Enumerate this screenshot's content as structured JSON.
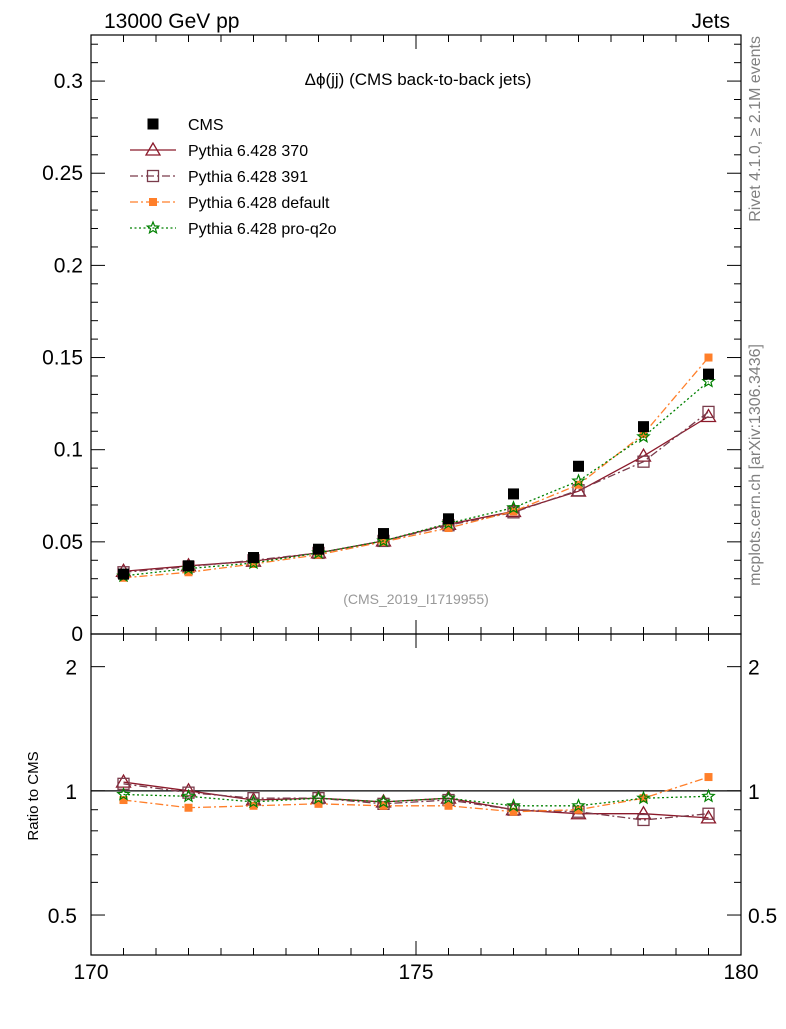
{
  "header": {
    "left": "13000 GeV pp",
    "right": "Jets"
  },
  "side_notes": {
    "rivet": "Rivet 4.1.0, ≥ 2.1M events",
    "mcplots": "mcplots.cern.ch [arXiv:1306.3436]"
  },
  "chart_data": {
    "type": "line",
    "title": "Δϕ(jj) (CMS back-to-back jets)",
    "analysis_label": "(CMS_2019_I1719955)",
    "xlabel": "",
    "xlim": [
      170,
      180
    ],
    "x_ticks": [
      "170",
      "175",
      "180"
    ],
    "x": [
      170.5,
      171.5,
      172.5,
      173.5,
      174.5,
      175.5,
      176.5,
      177.5,
      178.5,
      179.5
    ],
    "main": {
      "ylabel": "",
      "ylim": [
        0,
        0.325
      ],
      "y_ticks": [
        {
          "value": 0,
          "label": "0"
        },
        {
          "value": 0.05,
          "label": "0.05"
        },
        {
          "value": 0.1,
          "label": "0.1"
        },
        {
          "value": 0.15,
          "label": "0.15"
        },
        {
          "value": 0.2,
          "label": "0.2"
        },
        {
          "value": 0.25,
          "label": "0.25"
        },
        {
          "value": 0.3,
          "label": "0.3"
        }
      ],
      "series": [
        {
          "name": "CMS",
          "marker": "filled-square",
          "color": "#000000",
          "line": "none",
          "values": [
            0.0325,
            0.037,
            0.0415,
            0.046,
            0.0545,
            0.0625,
            0.076,
            0.091,
            0.1125,
            0.141
          ]
        },
        {
          "name": "Pythia 6.428 370",
          "marker": "open-triangle",
          "color": "#8b1a2b",
          "line": "solid",
          "values": [
            0.034,
            0.037,
            0.0395,
            0.044,
            0.0505,
            0.0595,
            0.0665,
            0.0775,
            0.0965,
            0.118
          ]
        },
        {
          "name": "Pythia 6.428 391",
          "marker": "open-square",
          "color": "#7a3b4b",
          "line": "dashdot",
          "values": [
            0.0335,
            0.0365,
            0.04,
            0.044,
            0.0505,
            0.059,
            0.066,
            0.078,
            0.0935,
            0.1205
          ]
        },
        {
          "name": "Pythia 6.428 default",
          "marker": "filled-small-square",
          "color": "#ff7f2a",
          "line": "dashdot",
          "values": [
            0.0305,
            0.0335,
            0.038,
            0.043,
            0.05,
            0.0575,
            0.0665,
            0.081,
            0.1085,
            0.15
          ]
        },
        {
          "name": "Pythia 6.428 pro-q2o",
          "marker": "open-star",
          "color": "#008000",
          "line": "dotted",
          "values": [
            0.0315,
            0.0355,
            0.0385,
            0.044,
            0.0505,
            0.06,
            0.0685,
            0.083,
            0.107,
            0.137
          ]
        }
      ]
    },
    "ratio": {
      "ylabel": "Ratio to CMS",
      "scale": "log",
      "ylim": [
        0.4,
        2.4
      ],
      "y_ticks_left": [
        {
          "value": 0.5,
          "label": "0.5"
        },
        {
          "value": 1,
          "label": "1"
        },
        {
          "value": 2,
          "label": "2"
        }
      ],
      "y_ticks_right": [
        {
          "value": 0.5,
          "label": "0.5"
        },
        {
          "value": 1,
          "label": "1"
        },
        {
          "value": 2,
          "label": "2"
        }
      ],
      "reference": 1,
      "series": [
        {
          "name": "Pythia 6.428 370",
          "values": [
            1.05,
            1.0,
            0.95,
            0.96,
            0.94,
            0.96,
            0.9,
            0.88,
            0.88,
            0.86
          ]
        },
        {
          "name": "Pythia 6.428 391",
          "values": [
            1.04,
            0.99,
            0.96,
            0.96,
            0.93,
            0.95,
            0.9,
            0.89,
            0.85,
            0.88
          ]
        },
        {
          "name": "Pythia 6.428 default",
          "values": [
            0.95,
            0.91,
            0.92,
            0.93,
            0.92,
            0.92,
            0.89,
            0.9,
            0.96,
            1.08
          ]
        },
        {
          "name": "Pythia 6.428 pro-q2o",
          "values": [
            0.98,
            0.97,
            0.94,
            0.96,
            0.94,
            0.96,
            0.92,
            0.92,
            0.96,
            0.97
          ]
        }
      ]
    }
  }
}
